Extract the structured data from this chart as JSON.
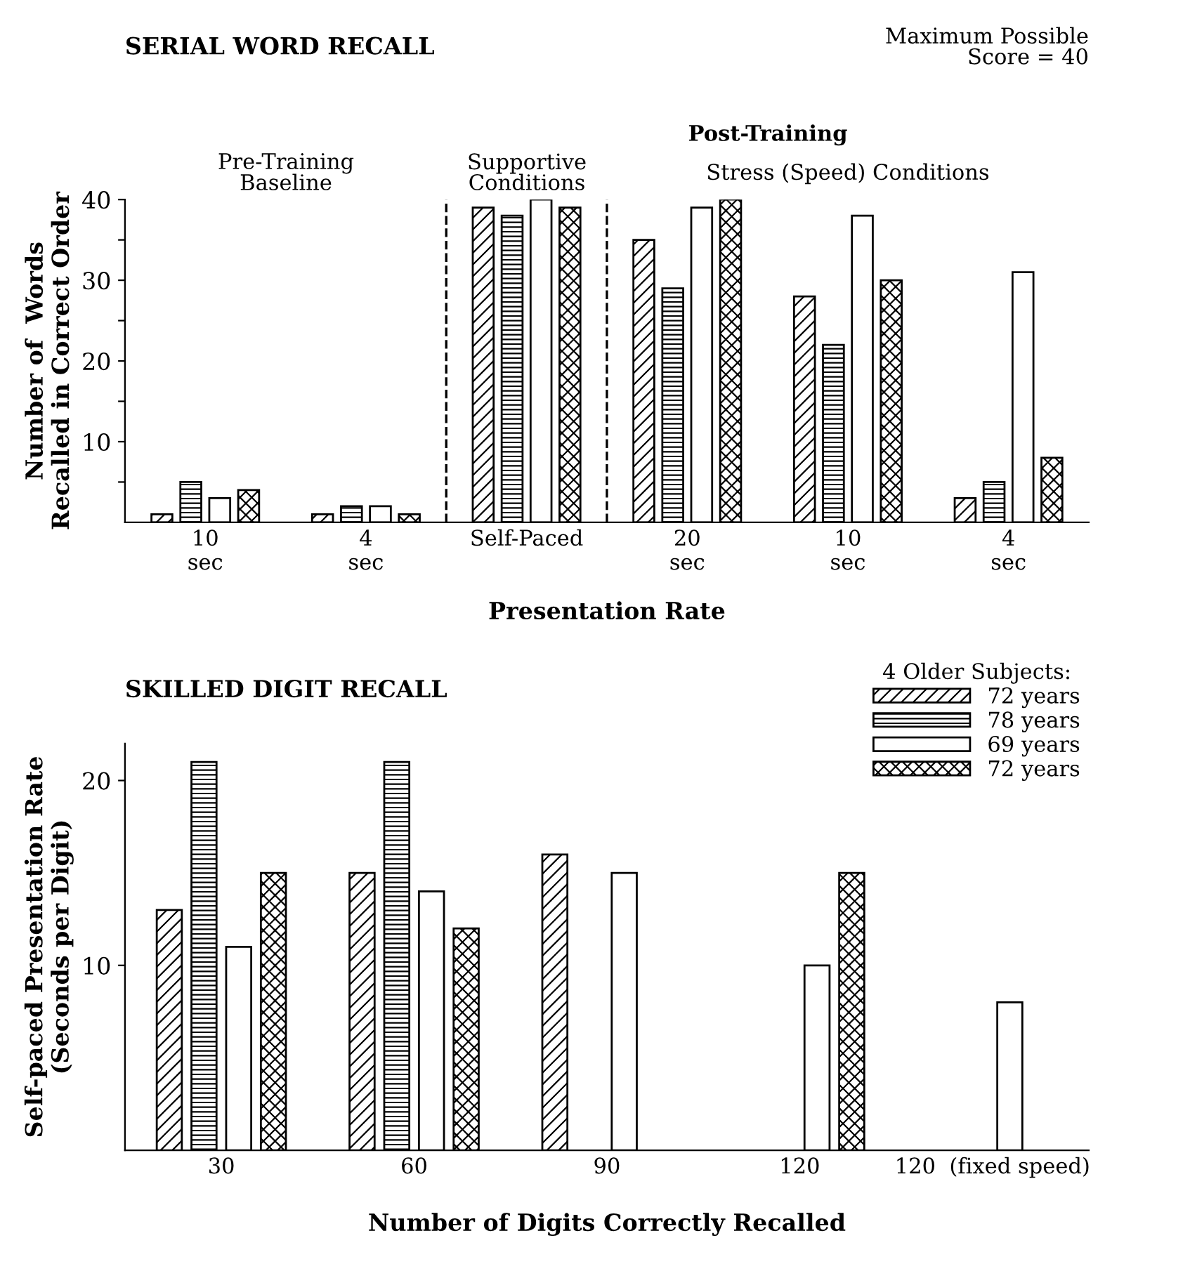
{
  "chart_data": [
    {
      "type": "bar",
      "title": "SERIAL WORD RECALL",
      "xlabel": "Presentation Rate",
      "ylabel": "Number of  Words\nRecalled in Correct Order",
      "categories": [
        "10\nsec",
        "4\nsec",
        "Self-Paced",
        "20\nsec",
        "10\nsec",
        "4\nsec"
      ],
      "series": [
        {
          "color": "#000000",
          "values": [
            1,
            1,
            39,
            35,
            28,
            3
          ]
        },
        {
          "color": "#000000",
          "values": [
            5,
            2,
            38,
            29,
            22,
            5
          ]
        },
        {
          "color": "#000000",
          "values": [
            3,
            2,
            40,
            39,
            38,
            31
          ]
        },
        {
          "color": "#000000",
          "values": [
            4,
            1,
            39,
            40,
            30,
            8
          ]
        }
      ],
      "ylim": [
        0,
        40
      ],
      "yticks": [
        {
          "value": 5,
          "label": null
        },
        10,
        {
          "value": 15,
          "label": null
        },
        20,
        {
          "value": 25,
          "label": null
        },
        30,
        {
          "value": 35,
          "label": null
        },
        40
      ],
      "annotations": [
        "Maximum Possible\nScore = 40",
        "Post-Training",
        "Pre-Training\nBaseline",
        "Supportive\nConditions",
        "Stress (Speed) Conditions"
      ]
    },
    {
      "type": "bar",
      "title": "SKILLED DIGIT RECALL",
      "xlabel": "Number of Digits Correctly Recalled",
      "ylabel": "Self-paced Presentation Rate\n(Seconds per Digit)",
      "categories": [
        "30",
        "60",
        "90",
        "120",
        "120  (fixed speed)"
      ],
      "series": [
        {
          "name": "72 years",
          "color": "#000000",
          "values": [
            13,
            15,
            16,
            null,
            null
          ]
        },
        {
          "name": "78 years",
          "color": "#000000",
          "values": [
            21,
            21,
            null,
            null,
            null
          ]
        },
        {
          "name": "69 years",
          "color": "#000000",
          "values": [
            11,
            14,
            15,
            10,
            8
          ]
        },
        {
          "name": "72 years",
          "color": "#000000",
          "values": [
            15,
            12,
            null,
            15,
            null
          ]
        }
      ],
      "ylim": [
        0,
        22
      ],
      "yticks": [
        10,
        20
      ],
      "legend": "top right",
      "legend_title": "4 Older Subjects:"
    }
  ]
}
